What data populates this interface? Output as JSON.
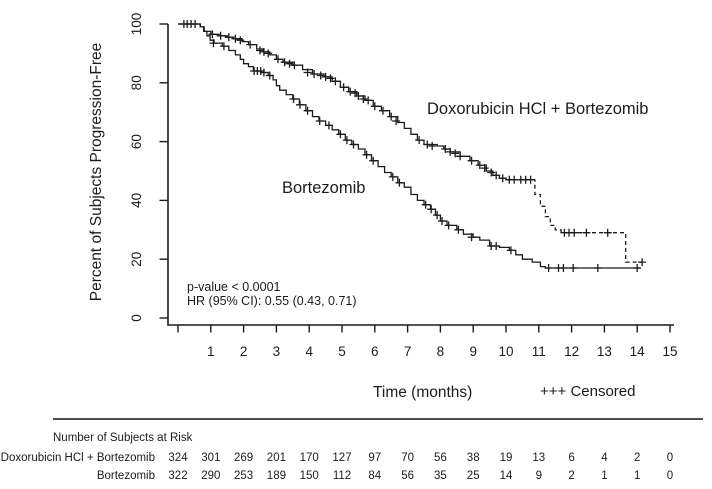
{
  "chart_data": {
    "type": "line",
    "subtype": "kaplan-meier-step-curve",
    "title": "",
    "xlabel": "Time (months)",
    "ylabel": "Percent of Subjects Progression-Free",
    "xlim": [
      0,
      15
    ],
    "ylim": [
      0,
      100
    ],
    "xticks": [
      1,
      2,
      3,
      4,
      5,
      6,
      7,
      8,
      9,
      10,
      11,
      12,
      13,
      14,
      15
    ],
    "yticks": [
      0,
      20,
      40,
      60,
      80,
      100
    ],
    "grid": false,
    "legend_label": "+++ Censored",
    "annotations": [
      "p-value < 0.0001",
      "HR (95% CI): 0.55 (0.43, 0.71)"
    ],
    "series": [
      {
        "name": "Doxorubicin HCl + Bortezomib",
        "line_style": "solid then dashed",
        "dash_from": 10.82,
        "steps": [
          [
            0,
            100
          ],
          [
            0.68,
            99
          ],
          [
            0.8,
            97.5
          ],
          [
            1.0,
            96.5
          ],
          [
            1.25,
            96
          ],
          [
            1.5,
            95.5
          ],
          [
            1.7,
            95
          ],
          [
            1.95,
            94
          ],
          [
            2.15,
            93
          ],
          [
            2.4,
            91.5
          ],
          [
            2.6,
            90.5
          ],
          [
            2.8,
            89.5
          ],
          [
            3.0,
            88
          ],
          [
            3.2,
            87
          ],
          [
            3.5,
            86
          ],
          [
            3.8,
            84.5
          ],
          [
            4.1,
            83
          ],
          [
            4.45,
            82
          ],
          [
            4.7,
            80.5
          ],
          [
            4.95,
            78.5
          ],
          [
            5.2,
            77
          ],
          [
            5.45,
            75.5
          ],
          [
            5.7,
            74
          ],
          [
            5.95,
            72
          ],
          [
            6.2,
            70.5
          ],
          [
            6.45,
            68.5
          ],
          [
            6.7,
            66.5
          ],
          [
            6.9,
            64.5
          ],
          [
            7.1,
            62.5
          ],
          [
            7.3,
            60.5
          ],
          [
            7.5,
            59
          ],
          [
            7.9,
            58.5
          ],
          [
            8.1,
            57.5
          ],
          [
            8.3,
            56.5
          ],
          [
            8.6,
            55
          ],
          [
            8.9,
            53.5
          ],
          [
            9.15,
            52
          ],
          [
            9.4,
            50
          ],
          [
            9.6,
            48.5
          ],
          [
            9.8,
            47.5
          ],
          [
            10.0,
            47
          ],
          [
            10.82,
            47
          ],
          [
            10.88,
            42
          ],
          [
            11.05,
            38
          ],
          [
            11.2,
            34.5
          ],
          [
            11.35,
            31.5
          ],
          [
            11.5,
            30
          ],
          [
            11.68,
            29
          ],
          [
            13.6,
            29
          ],
          [
            13.65,
            19
          ],
          [
            14.2,
            19
          ]
        ],
        "censor_marks": [
          [
            0.18,
            100
          ],
          [
            0.28,
            100
          ],
          [
            0.4,
            100
          ],
          [
            0.52,
            100
          ],
          [
            1.05,
            96.5
          ],
          [
            1.3,
            96
          ],
          [
            1.55,
            95.5
          ],
          [
            1.75,
            95
          ],
          [
            1.9,
            94.5
          ],
          [
            2.2,
            93
          ],
          [
            2.5,
            91
          ],
          [
            2.62,
            90.5
          ],
          [
            2.75,
            90
          ],
          [
            3.05,
            88
          ],
          [
            3.25,
            87
          ],
          [
            3.4,
            86.5
          ],
          [
            3.55,
            86
          ],
          [
            3.95,
            83.5
          ],
          [
            4.15,
            83
          ],
          [
            4.35,
            82.5
          ],
          [
            4.5,
            82
          ],
          [
            4.65,
            81.5
          ],
          [
            4.8,
            80.5
          ],
          [
            5.05,
            78.5
          ],
          [
            5.25,
            77
          ],
          [
            5.4,
            76.5
          ],
          [
            5.5,
            75.5
          ],
          [
            5.65,
            74.5
          ],
          [
            5.8,
            74
          ],
          [
            6.0,
            72
          ],
          [
            6.25,
            70.5
          ],
          [
            6.5,
            68.5
          ],
          [
            6.65,
            67
          ],
          [
            7.35,
            60.5
          ],
          [
            7.6,
            59
          ],
          [
            7.75,
            58.5
          ],
          [
            8.15,
            57.5
          ],
          [
            8.3,
            56.5
          ],
          [
            8.45,
            56
          ],
          [
            8.6,
            55
          ],
          [
            8.95,
            53.5
          ],
          [
            9.2,
            52
          ],
          [
            9.35,
            51
          ],
          [
            9.55,
            49.5
          ],
          [
            9.7,
            48.5
          ],
          [
            9.9,
            47.5
          ],
          [
            10.1,
            47
          ],
          [
            10.25,
            47
          ],
          [
            10.45,
            47
          ],
          [
            10.6,
            47
          ],
          [
            10.75,
            47
          ],
          [
            11.78,
            29
          ],
          [
            11.92,
            29
          ],
          [
            12.08,
            29
          ],
          [
            12.45,
            29
          ],
          [
            13.1,
            29
          ],
          [
            14.15,
            19
          ]
        ]
      },
      {
        "name": "Bortezomib",
        "line_style": "solid",
        "dash_from": null,
        "steps": [
          [
            0,
            100
          ],
          [
            0.68,
            99
          ],
          [
            0.78,
            97.5
          ],
          [
            0.88,
            96
          ],
          [
            0.98,
            94.5
          ],
          [
            1.1,
            93.5
          ],
          [
            1.35,
            92.5
          ],
          [
            1.55,
            91
          ],
          [
            1.75,
            89.5
          ],
          [
            1.9,
            88
          ],
          [
            2.0,
            86.5
          ],
          [
            2.15,
            85.5
          ],
          [
            2.3,
            84
          ],
          [
            2.55,
            83.5
          ],
          [
            2.75,
            82.5
          ],
          [
            2.9,
            81
          ],
          [
            3.0,
            79
          ],
          [
            3.1,
            77.5
          ],
          [
            3.3,
            76
          ],
          [
            3.5,
            74.5
          ],
          [
            3.7,
            72.5
          ],
          [
            3.9,
            70.5
          ],
          [
            4.1,
            68.5
          ],
          [
            4.3,
            67
          ],
          [
            4.5,
            65.5
          ],
          [
            4.7,
            64
          ],
          [
            4.9,
            62.5
          ],
          [
            5.1,
            60.5
          ],
          [
            5.3,
            59
          ],
          [
            5.5,
            57.5
          ],
          [
            5.7,
            55.5
          ],
          [
            5.9,
            53.5
          ],
          [
            6.1,
            51.5
          ],
          [
            6.3,
            49.5
          ],
          [
            6.5,
            48
          ],
          [
            6.7,
            46
          ],
          [
            6.9,
            44.5
          ],
          [
            7.1,
            42
          ],
          [
            7.3,
            40
          ],
          [
            7.5,
            38.5
          ],
          [
            7.7,
            37
          ],
          [
            7.85,
            35
          ],
          [
            8.0,
            33
          ],
          [
            8.2,
            31.5
          ],
          [
            8.5,
            30
          ],
          [
            8.7,
            28.5
          ],
          [
            9.0,
            27.5
          ],
          [
            9.2,
            26.5
          ],
          [
            9.5,
            24.5
          ],
          [
            9.8,
            24
          ],
          [
            10.1,
            23
          ],
          [
            10.3,
            21.5
          ],
          [
            10.5,
            20
          ],
          [
            10.8,
            19
          ],
          [
            11.05,
            17.5
          ],
          [
            11.2,
            17
          ],
          [
            14.1,
            17
          ]
        ],
        "censor_marks": [
          [
            1.08,
            93.5
          ],
          [
            1.4,
            92.5
          ],
          [
            2.32,
            84
          ],
          [
            2.42,
            84
          ],
          [
            2.52,
            84
          ],
          [
            2.62,
            83.5
          ],
          [
            2.8,
            82.5
          ],
          [
            3.52,
            74.5
          ],
          [
            3.72,
            72.5
          ],
          [
            3.95,
            70.5
          ],
          [
            4.32,
            67
          ],
          [
            4.6,
            65.5
          ],
          [
            4.95,
            62.5
          ],
          [
            5.15,
            60.5
          ],
          [
            5.35,
            59
          ],
          [
            5.75,
            55.5
          ],
          [
            5.95,
            53.5
          ],
          [
            6.55,
            48
          ],
          [
            6.75,
            46
          ],
          [
            7.55,
            38.5
          ],
          [
            7.72,
            37
          ],
          [
            7.9,
            35
          ],
          [
            8.05,
            33
          ],
          [
            8.25,
            31.5
          ],
          [
            8.55,
            30
          ],
          [
            8.95,
            27.5
          ],
          [
            9.55,
            24.5
          ],
          [
            9.7,
            24.5
          ],
          [
            10.15,
            23
          ],
          [
            11.3,
            17
          ],
          [
            11.6,
            17
          ],
          [
            11.75,
            17
          ],
          [
            12.05,
            17
          ],
          [
            12.8,
            17
          ],
          [
            14.0,
            17
          ]
        ]
      }
    ]
  },
  "risk_table": {
    "header": "Number of Subjects at Risk",
    "time_points": [
      0,
      1,
      2,
      3,
      4,
      5,
      6,
      7,
      8,
      9,
      10,
      11,
      12,
      13,
      14,
      15
    ],
    "rows": [
      {
        "label": "Doxorubicin HCl + Bortezomib",
        "values": [
          324,
          301,
          269,
          201,
          170,
          127,
          97,
          70,
          56,
          38,
          19,
          13,
          6,
          4,
          2,
          0
        ]
      },
      {
        "label": "Bortezomib",
        "values": [
          322,
          290,
          253,
          189,
          150,
          112,
          84,
          56,
          35,
          25,
          14,
          9,
          2,
          1,
          1,
          0
        ]
      }
    ]
  },
  "colors": {
    "ink": "#1c1c1c",
    "divider": "#4d4d4d",
    "background": "#ffffff"
  }
}
